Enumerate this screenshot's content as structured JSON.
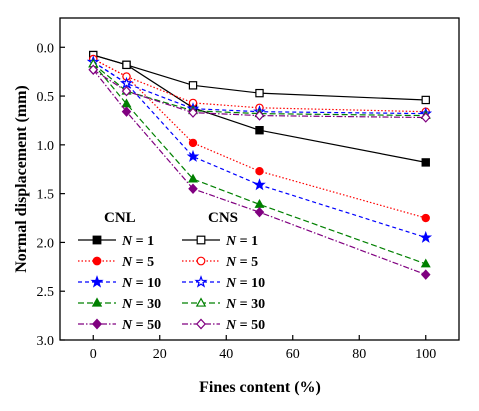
{
  "chart_data": {
    "type": "line",
    "xlabel": "Fines content (%)",
    "ylabel": "Normal displacement (mm)",
    "xlim": [
      -10,
      110
    ],
    "ylim": [
      3.0,
      -0.3
    ],
    "y_inverted": true,
    "x_ticks": [
      0,
      20,
      40,
      60,
      80,
      100
    ],
    "y_ticks": [
      0.0,
      0.5,
      1.0,
      1.5,
      2.0,
      2.5,
      3.0
    ],
    "y_tick_labels": [
      "0.0",
      "0.5",
      "1.0",
      "1.5",
      "2.0",
      "2.5",
      "3.0"
    ],
    "grid": false,
    "legend_placement": "lower-left",
    "groups": [
      {
        "title": "CNL",
        "marker_fill": "filled"
      },
      {
        "title": "CNS",
        "marker_fill": "open"
      }
    ],
    "x": [
      0,
      10,
      30,
      50,
      100
    ],
    "series": [
      {
        "name": "N = 1",
        "group": "CNL",
        "N": "1",
        "color": "#000000",
        "marker": "square",
        "dash": "solid",
        "values": [
          0.08,
          0.18,
          0.62,
          0.85,
          1.18
        ]
      },
      {
        "name": "N = 5",
        "group": "CNL",
        "N": "5",
        "color": "#ff0000",
        "marker": "circle",
        "dash": "dot",
        "values": [
          0.12,
          0.3,
          0.98,
          1.27,
          1.75
        ]
      },
      {
        "name": "N = 10",
        "group": "CNL",
        "N": "10",
        "color": "#0000ff",
        "marker": "star",
        "dash": "dash",
        "values": [
          0.15,
          0.37,
          1.12,
          1.41,
          1.95
        ]
      },
      {
        "name": "N = 30",
        "group": "CNL",
        "N": "30",
        "color": "#008000",
        "marker": "triangle",
        "dash": "longdash",
        "values": [
          0.17,
          0.58,
          1.35,
          1.61,
          2.22
        ]
      },
      {
        "name": "N = 50",
        "group": "CNL",
        "N": "50",
        "color": "#800080",
        "marker": "diamond",
        "dash": "dashdot",
        "values": [
          0.23,
          0.66,
          1.45,
          1.69,
          2.33
        ]
      },
      {
        "name": "N = 1",
        "group": "CNS",
        "N": "1",
        "color": "#000000",
        "marker": "square",
        "dash": "solid",
        "values": [
          0.08,
          0.18,
          0.39,
          0.47,
          0.54
        ]
      },
      {
        "name": "N = 5",
        "group": "CNS",
        "N": "5",
        "color": "#ff0000",
        "marker": "circle",
        "dash": "dot",
        "values": [
          0.12,
          0.3,
          0.57,
          0.62,
          0.66
        ]
      },
      {
        "name": "N = 10",
        "group": "CNS",
        "N": "10",
        "color": "#0000ff",
        "marker": "star",
        "dash": "dash",
        "values": [
          0.15,
          0.37,
          0.63,
          0.66,
          0.68
        ]
      },
      {
        "name": "N = 30",
        "group": "CNS",
        "N": "30",
        "color": "#008000",
        "marker": "triangle",
        "dash": "longdash",
        "values": [
          0.17,
          0.45,
          0.65,
          0.68,
          0.7
        ]
      },
      {
        "name": "N = 50",
        "group": "CNS",
        "N": "50",
        "color": "#800080",
        "marker": "diamond",
        "dash": "dashdot",
        "values": [
          0.23,
          0.45,
          0.67,
          0.7,
          0.72
        ]
      }
    ]
  }
}
